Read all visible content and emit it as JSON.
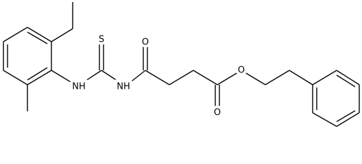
{
  "atoms": {
    "thio_s": "S",
    "amide_o": "O",
    "nh_aryl": "NH",
    "nh_acyl": "NH",
    "ester_o": "O",
    "carbonyl_o": "O"
  }
}
